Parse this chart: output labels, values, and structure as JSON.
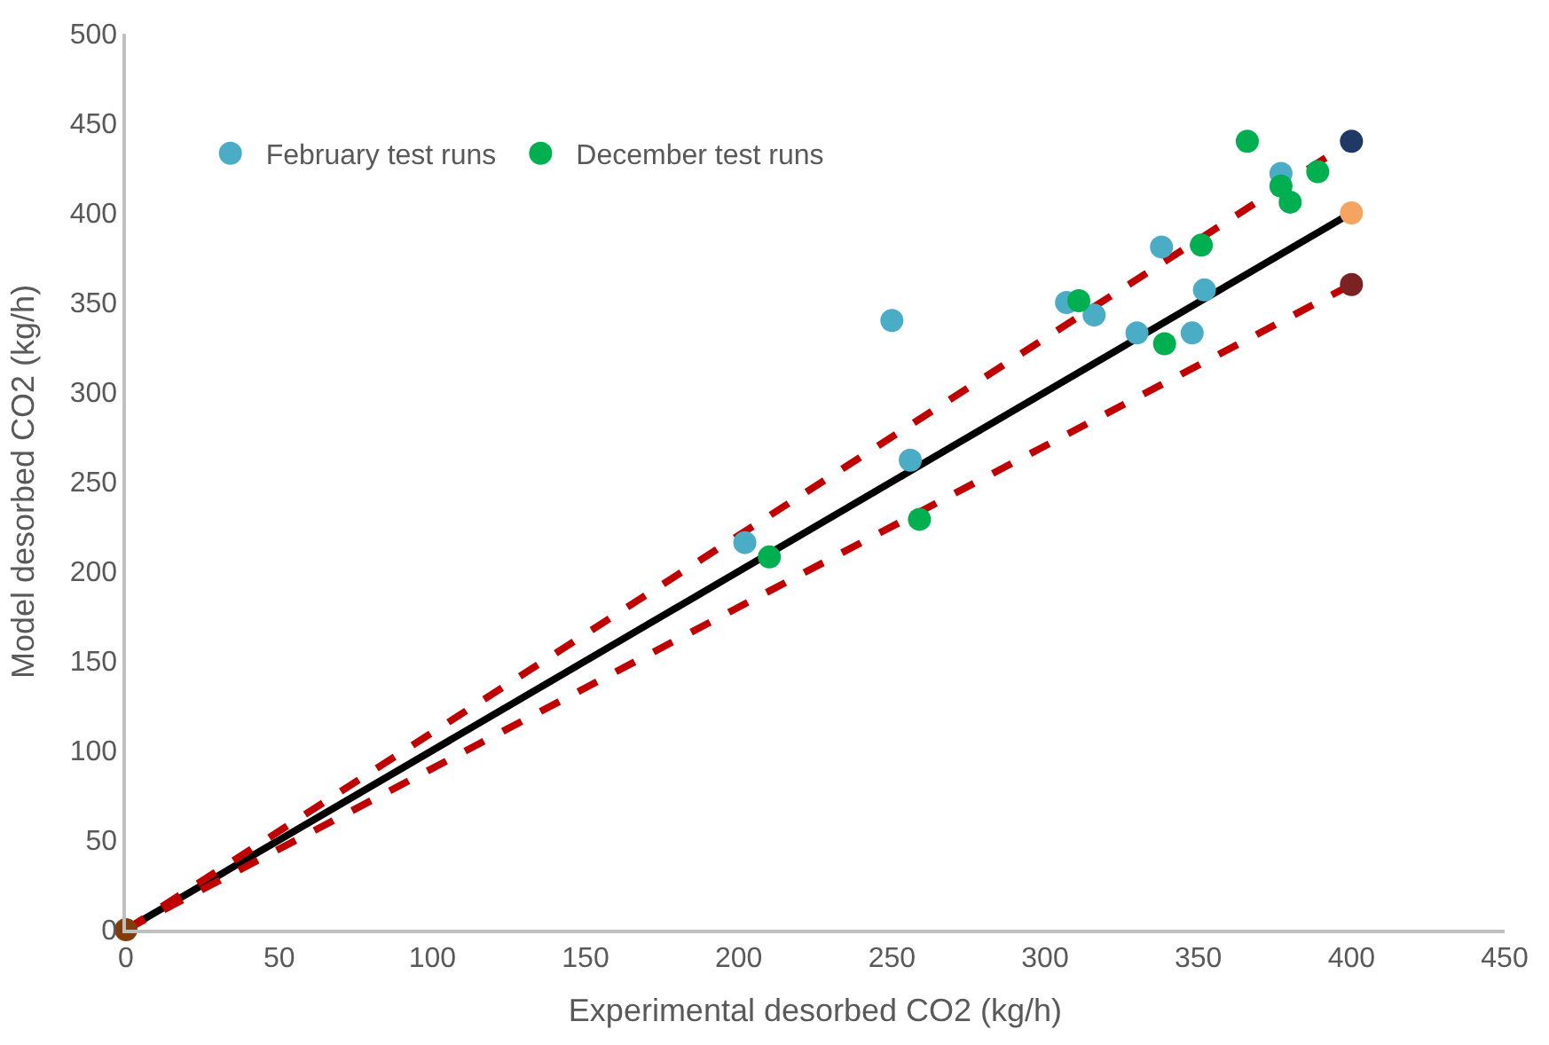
{
  "chart_data": {
    "type": "scatter",
    "xlabel": "Experimental desorbed CO2 (kg/h)",
    "ylabel": "Model desorbed CO2 (kg/h)",
    "xlim": [
      0,
      450
    ],
    "xticks": [
      0,
      50,
      100,
      150,
      200,
      250,
      300,
      350,
      400,
      450
    ],
    "ylim": [
      0,
      500
    ],
    "yticks": [
      0,
      50,
      100,
      150,
      200,
      250,
      300,
      350,
      400,
      450,
      500
    ],
    "legend": "top left",
    "marker": "circle",
    "series": [
      {
        "type": "line",
        "color": "#000000",
        "line_style": "solid",
        "marker": "none",
        "x": [
          0,
          400
        ],
        "values": [
          0,
          400
        ]
      },
      {
        "type": "line",
        "color": "#c00000",
        "line_style": "dashed",
        "marker": "none",
        "x": [
          0,
          400
        ],
        "values": [
          0,
          440
        ]
      },
      {
        "type": "line",
        "color": "#c00000",
        "line_style": "dashed",
        "marker": "none",
        "x": [
          0,
          400
        ],
        "values": [
          0,
          360
        ]
      },
      {
        "type": "scatter",
        "colors": [
          "#833c0b",
          "#1f3864",
          "#f4a460",
          "#7b2323"
        ],
        "x": [
          0,
          400,
          400,
          400
        ],
        "values": [
          0,
          440,
          400,
          360
        ]
      },
      {
        "name": "February test runs",
        "color": "#4bacc6",
        "x": [
          202,
          250,
          256,
          307,
          316,
          330,
          338,
          348,
          352,
          377
        ],
        "values": [
          216,
          340,
          262,
          350,
          343,
          333,
          381,
          333,
          357,
          422
        ]
      },
      {
        "name": "December test runs",
        "color": "#00b050",
        "x": [
          210,
          259,
          311,
          339,
          351,
          366,
          377,
          380,
          389
        ],
        "values": [
          208,
          229,
          351,
          327,
          382,
          440,
          415,
          406,
          423
        ]
      }
    ]
  }
}
